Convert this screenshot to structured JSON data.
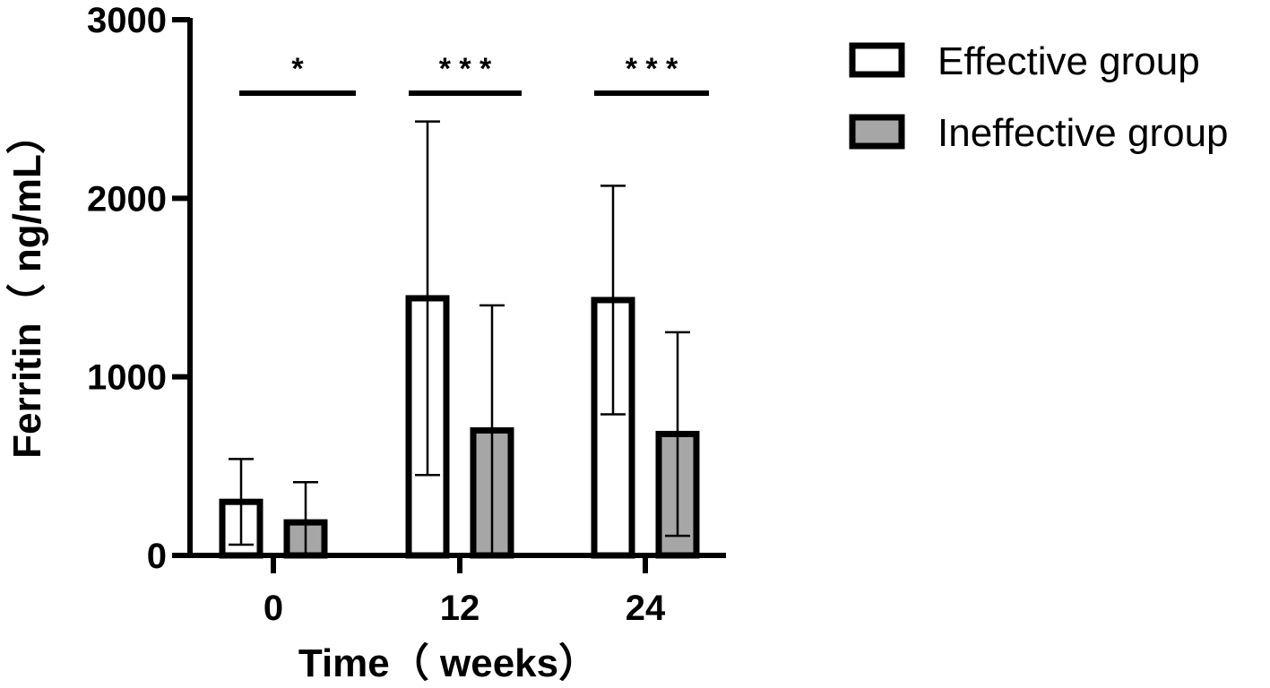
{
  "chart_data": {
    "type": "bar",
    "title": "",
    "xlabel": "Time（ weeks）",
    "ylabel": "Ferritin（ ng/mL）",
    "ylim": [
      0,
      3000
    ],
    "yticks": [
      "0",
      "1000",
      "2000",
      "3000"
    ],
    "categories": [
      "0",
      "12",
      "24"
    ],
    "series": [
      {
        "name": "Effective group",
        "values": [
          300,
          1440,
          1430
        ],
        "error": [
          240,
          990,
          640
        ],
        "color": "#ffffff"
      },
      {
        "name": "Ineffective group",
        "values": [
          185,
          700,
          680
        ],
        "error": [
          225,
          700,
          570
        ],
        "color": "#a6a6a6"
      }
    ],
    "significance": [
      "*",
      "* * *",
      "* * *"
    ],
    "legend_position": "top-right",
    "grid": false
  }
}
